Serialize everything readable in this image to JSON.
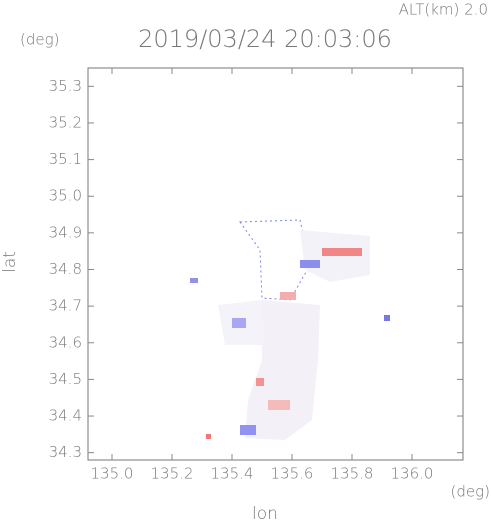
{
  "chart_data": {
    "type": "map",
    "title": "2019/03/24 20:03:06",
    "altitude_label": "ALT(km) 2.0",
    "y_unit": "(deg)",
    "x_unit": "(deg)",
    "xlabel": "lon",
    "ylabel": "lat",
    "xlim": [
      134.92,
      136.17
    ],
    "ylim": [
      34.28,
      35.35
    ],
    "xticks": [
      {
        "value": 135,
        "label": "135.0"
      },
      135.2,
      135.4,
      135.6,
      135.8,
      {
        "value": 136,
        "label": "136.0"
      }
    ],
    "yticks": [
      34.3,
      34.4,
      34.5,
      34.6,
      34.7,
      34.8,
      34.9,
      {
        "value": 35,
        "label": "35.0"
      },
      35.1,
      35.2,
      35.3
    ]
  }
}
